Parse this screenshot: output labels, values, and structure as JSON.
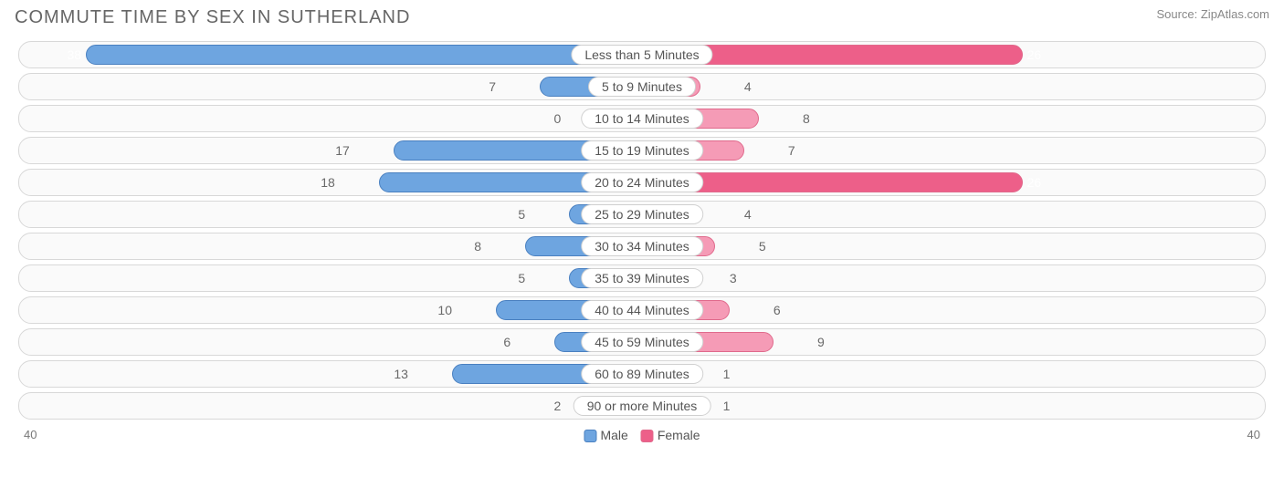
{
  "title": "COMMUTE TIME BY SEX IN SUTHERLAND",
  "source": "Source: ZipAtlas.com",
  "chart": {
    "type": "bar-butterfly",
    "max": 40,
    "axis_left": "40",
    "axis_right": "40",
    "male_color": "#6ea5e0",
    "male_border": "#4a80c0",
    "female_color": "#f59bb6",
    "female_border": "#e06a8c",
    "female_highlight": "#ed5f89",
    "row_bg": "#fafafa",
    "row_border": "#d8d8d8",
    "label_bg": "#ffffff",
    "label_border": "#d0d0d0",
    "text_color": "#696969",
    "center_pad_percent": 6,
    "rows": [
      {
        "label": "Less than 5 Minutes",
        "male": 38,
        "female": 26,
        "male_inside": true,
        "female_inside": true,
        "female_hl": true
      },
      {
        "label": "5 to 9 Minutes",
        "male": 7,
        "female": 4
      },
      {
        "label": "10 to 14 Minutes",
        "male": 0,
        "female": 8
      },
      {
        "label": "15 to 19 Minutes",
        "male": 17,
        "female": 7
      },
      {
        "label": "20 to 24 Minutes",
        "male": 18,
        "female": 26,
        "female_inside": true,
        "female_hl": true
      },
      {
        "label": "25 to 29 Minutes",
        "male": 5,
        "female": 4
      },
      {
        "label": "30 to 34 Minutes",
        "male": 8,
        "female": 5
      },
      {
        "label": "35 to 39 Minutes",
        "male": 5,
        "female": 3
      },
      {
        "label": "40 to 44 Minutes",
        "male": 10,
        "female": 6
      },
      {
        "label": "45 to 59 Minutes",
        "male": 6,
        "female": 9
      },
      {
        "label": "60 to 89 Minutes",
        "male": 13,
        "female": 1
      },
      {
        "label": "90 or more Minutes",
        "male": 2,
        "female": 1
      }
    ]
  },
  "legend": {
    "male": "Male",
    "female": "Female"
  }
}
